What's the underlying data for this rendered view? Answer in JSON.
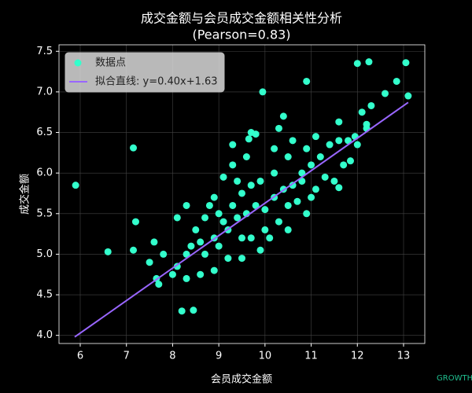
{
  "chart_data": {
    "type": "scatter",
    "title": "成交金额与会员成交金额相关性分析",
    "subtitle": "(Pearson=0.83)",
    "x_label": "会员成交金额",
    "y_label": "成交金额",
    "xlim": [
      5.54,
      13.46
    ],
    "ylim": [
      3.9,
      7.58
    ],
    "xticks": [
      6,
      7,
      8,
      9,
      10,
      11,
      12,
      13
    ],
    "yticks": [
      {
        "value": 4.0,
        "label": "4.0"
      },
      4.5,
      {
        "value": 5.0,
        "label": "5.0"
      },
      5.5,
      {
        "value": 6.0,
        "label": "6.0"
      },
      6.5,
      {
        "value": 7.0,
        "label": "7.0"
      },
      7.5
    ],
    "grid": true,
    "legend": "upper left",
    "series": [
      {
        "name": "数据点",
        "color": "#33ffcc",
        "kind": "points",
        "x": [
          5.9,
          6.6,
          7.15,
          7.2,
          7.15,
          8.2,
          8.45,
          9.95,
          10.9,
          12.0,
          12.25,
          13.05,
          12.85,
          13.1,
          12.6,
          12.3,
          12.1,
          12.2,
          11.95,
          11.6,
          11.6,
          10.4,
          10.3,
          9.7,
          9.65,
          9.8,
          9.3,
          7.6,
          7.8,
          7.5,
          7.65,
          7.7,
          8.0,
          8.3,
          8.6,
          8.9,
          9.2,
          9.5,
          9.3,
          9.1,
          8.9,
          8.7,
          8.5,
          8.3,
          8.1,
          8.4,
          8.7,
          9.0,
          9.2,
          9.4,
          9.6,
          9.8,
          10.0,
          10.2,
          10.4,
          10.6,
          10.8,
          11.0,
          11.2,
          11.4,
          11.6,
          11.8,
          10.0,
          10.3,
          10.5,
          10.7,
          10.9,
          11.1,
          11.3,
          10.9,
          11.1,
          10.5,
          10.2,
          9.9,
          9.7,
          9.5,
          9.3,
          9.1,
          8.9,
          8.6,
          9.7,
          9.9,
          9.5,
          10.1,
          10.5,
          11.0,
          10.2,
          11.7,
          11.85,
          12.0,
          8.3,
          8.1,
          9.0,
          9.4,
          10.6,
          11.5,
          12.2,
          8.8,
          9.6,
          10.8
        ],
        "values": [
          5.85,
          5.03,
          6.31,
          5.4,
          5.05,
          4.3,
          4.31,
          7.0,
          7.13,
          7.35,
          7.37,
          7.36,
          7.13,
          6.95,
          6.98,
          6.83,
          6.75,
          6.6,
          6.45,
          6.63,
          5.82,
          6.7,
          6.55,
          6.5,
          6.42,
          6.48,
          6.35,
          5.15,
          5.0,
          4.9,
          4.7,
          4.63,
          4.75,
          4.7,
          4.75,
          4.8,
          4.95,
          5.2,
          6.1,
          5.95,
          5.7,
          5.45,
          5.3,
          5.6,
          5.45,
          5.1,
          5.0,
          5.1,
          5.3,
          5.45,
          5.5,
          5.6,
          5.55,
          5.7,
          5.8,
          5.85,
          6.0,
          6.1,
          6.2,
          6.35,
          6.4,
          6.4,
          5.3,
          5.4,
          5.6,
          5.65,
          5.5,
          5.8,
          5.95,
          6.3,
          6.45,
          6.2,
          6.0,
          5.9,
          5.85,
          5.75,
          5.6,
          5.4,
          5.2,
          5.15,
          5.2,
          5.05,
          4.95,
          5.2,
          5.3,
          5.7,
          6.3,
          6.1,
          6.15,
          6.35,
          5.0,
          4.85,
          5.5,
          5.9,
          6.4,
          5.9,
          6.55,
          5.6,
          6.2,
          5.9
        ]
      },
      {
        "name": "拟合直线: y=0.40x+1.63",
        "color": "#9966ff",
        "kind": "line",
        "x": [
          5.88,
          13.1
        ],
        "values": [
          3.98,
          6.87
        ]
      }
    ],
    "watermark": "GROWTH BOX"
  }
}
